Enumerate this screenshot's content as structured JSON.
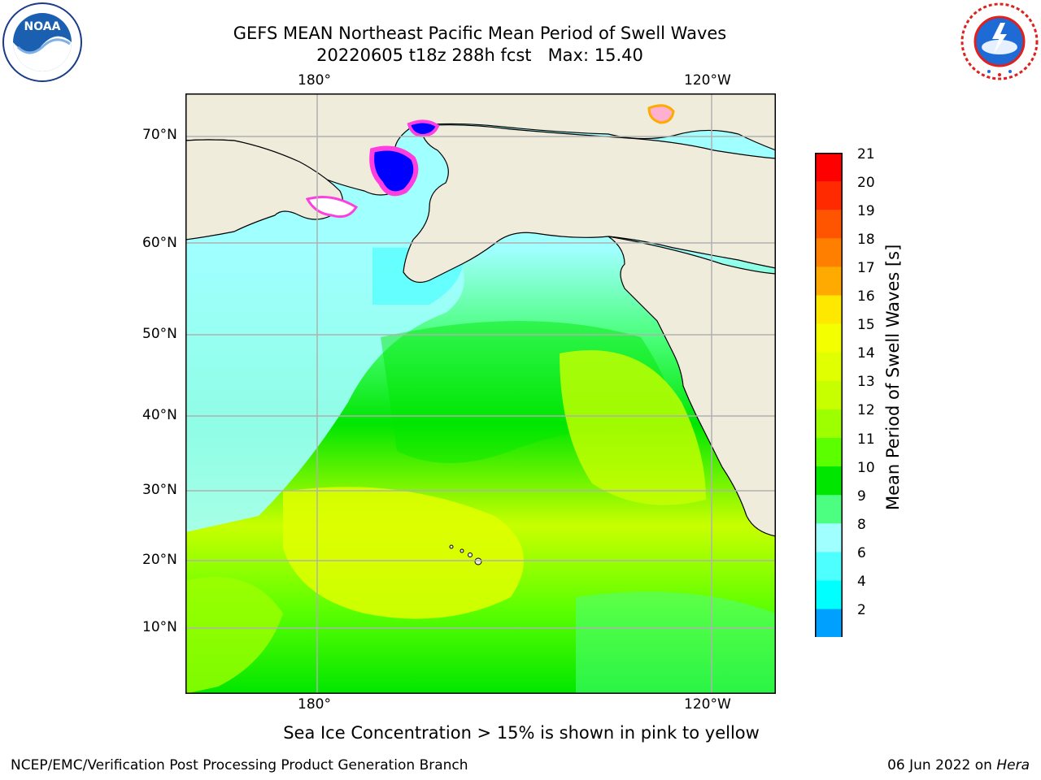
{
  "header": {
    "title_line1": "GEFS MEAN Northeast Pacific Mean Period of Swell Waves",
    "title_line2": "20220605 t18z 288h fcst   Max: 15.40"
  },
  "logos": {
    "noaa": {
      "text": "NOAA",
      "ring_text": "NATIONAL OCEANIC AND ATMOSPHERIC ADMINISTRATION · U.S. DEPARTMENT OF COMMERCE"
    },
    "nws": {
      "ring_text": "NATIONAL WEATHER SERVICE"
    }
  },
  "map": {
    "top_lon_labels": [
      "180°",
      "120°W"
    ],
    "bottom_lon_labels": [
      "180°",
      "120°W"
    ],
    "lat_labels": [
      "70°N",
      "60°N",
      "50°N",
      "40°N",
      "30°N",
      "20°N",
      "10°N"
    ],
    "land_color": "#efecdc",
    "grid_color": "#b0b0b0"
  },
  "colorbar": {
    "label": "Mean Period of Swell Waves [s]",
    "ticks": [
      "21",
      "20",
      "19",
      "18",
      "17",
      "16",
      "15",
      "14",
      "13",
      "12",
      "11",
      "10",
      "9",
      "8",
      "6",
      "4",
      "2"
    ],
    "colors": [
      "#ff0000",
      "#ff2a00",
      "#ff5500",
      "#ff8000",
      "#ffaa00",
      "#ffe800",
      "#f4ff00",
      "#e0ff00",
      "#c8ff00",
      "#9eff00",
      "#5cff00",
      "#00e600",
      "#4dff80",
      "#a0ffff",
      "#4dffff",
      "#00ffff",
      "#00a0ff",
      "#0066ff",
      "#0000ff"
    ]
  },
  "note": "Sea Ice Concentration > 15% is shown in pink to yellow",
  "footer": {
    "left": "NCEP/EMC/Verification Post Processing Product Generation Branch",
    "right_date": "06 Jun 2022 on ",
    "right_host": "Hera"
  }
}
